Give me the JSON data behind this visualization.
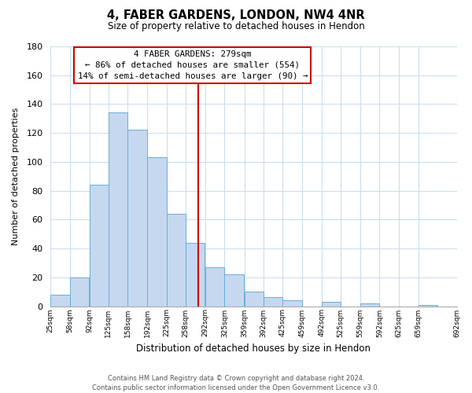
{
  "title": "4, FABER GARDENS, LONDON, NW4 4NR",
  "subtitle": "Size of property relative to detached houses in Hendon",
  "xlabel": "Distribution of detached houses by size in Hendon",
  "ylabel": "Number of detached properties",
  "bar_left_edges": [
    25,
    58,
    92,
    125,
    158,
    192,
    225,
    258,
    292,
    325,
    359,
    392,
    425,
    459,
    492,
    525,
    559,
    592,
    625,
    659
  ],
  "bar_heights": [
    8,
    20,
    84,
    134,
    122,
    103,
    64,
    44,
    27,
    22,
    10,
    6,
    4,
    0,
    3,
    0,
    2,
    0,
    0,
    1
  ],
  "bin_width": 33,
  "tick_labels": [
    "25sqm",
    "58sqm",
    "92sqm",
    "125sqm",
    "158sqm",
    "192sqm",
    "225sqm",
    "258sqm",
    "292sqm",
    "325sqm",
    "359sqm",
    "392sqm",
    "425sqm",
    "459sqm",
    "492sqm",
    "525sqm",
    "559sqm",
    "592sqm",
    "625sqm",
    "659sqm",
    "692sqm"
  ],
  "bar_color": "#c5d8ef",
  "bar_edge_color": "#6badd6",
  "vline_x": 279,
  "vline_color": "#cc0000",
  "ylim": [
    0,
    180
  ],
  "yticks": [
    0,
    20,
    40,
    60,
    80,
    100,
    120,
    140,
    160,
    180
  ],
  "annotation_title": "4 FABER GARDENS: 279sqm",
  "annotation_line1": "← 86% of detached houses are smaller (554)",
  "annotation_line2": "14% of semi-detached houses are larger (90) →",
  "footer_line1": "Contains HM Land Registry data © Crown copyright and database right 2024.",
  "footer_line2": "Contains public sector information licensed under the Open Government Licence v3.0.",
  "background_color": "#ffffff",
  "grid_color": "#ccddee"
}
